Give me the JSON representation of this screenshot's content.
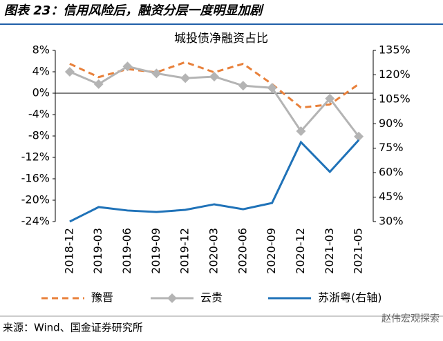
{
  "header": {
    "title": "图表 23：信用风险后，融资分层一度明显加剧"
  },
  "chart_data": {
    "type": "line",
    "title": "城投债净融资占比",
    "categories": [
      "2018-12",
      "2019-03",
      "2019-06",
      "2019-09",
      "2019-12",
      "2020-03",
      "2020-06",
      "2020-09",
      "2020-12",
      "2021-03",
      "2021-05"
    ],
    "series": [
      {
        "name": "豫晋",
        "color": "#e8803a",
        "dash": true,
        "values": [
          5.5,
          3.0,
          4.5,
          3.9,
          5.8,
          3.9,
          5.5,
          1.7,
          -2.7,
          -2.1,
          1.7
        ]
      },
      {
        "name": "云贵",
        "color": "#b4b4b4",
        "marker": "diamond",
        "values": [
          4.0,
          1.7,
          5.0,
          3.7,
          2.8,
          3.1,
          1.4,
          1.0,
          -7.1,
          -1.0,
          -8.1
        ]
      },
      {
        "name": "苏浙粤(右轴)",
        "color": "#1f72b8",
        "axis": "y2",
        "values": [
          30,
          38.9,
          36.8,
          35.9,
          37.2,
          40.6,
          37.6,
          41.4,
          78.7,
          60.5,
          80
        ]
      }
    ],
    "ylim": [
      -24,
      8
    ],
    "yticks": [
      {
        "value": -24,
        "label": "-24%"
      },
      {
        "value": -20,
        "label": "-20%"
      },
      {
        "value": -16,
        "label": "-16%"
      },
      {
        "value": -12,
        "label": "-12%"
      },
      {
        "value": -8,
        "label": "-8%"
      },
      {
        "value": -4,
        "label": "-4%"
      },
      {
        "value": 0,
        "label": "0%"
      },
      {
        "value": 4,
        "label": "4%"
      },
      {
        "value": 8,
        "label": "8%"
      }
    ],
    "y2lim": [
      30,
      135
    ],
    "y2ticks": [
      {
        "value": 30,
        "label": "30%"
      },
      {
        "value": 45,
        "label": "45%"
      },
      {
        "value": 60,
        "label": "60%"
      },
      {
        "value": 75,
        "label": "75%"
      },
      {
        "value": 90,
        "label": "90%"
      },
      {
        "value": 105,
        "label": "105%"
      },
      {
        "value": 120,
        "label": "120%"
      },
      {
        "value": 135,
        "label": "135%"
      }
    ]
  },
  "footer": {
    "source": "来源：Wind、国金证券研究所",
    "watermark": "赵伟宏观探索"
  }
}
